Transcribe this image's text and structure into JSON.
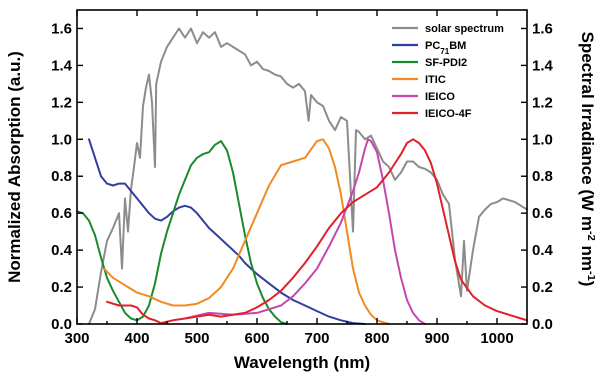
{
  "chart_data": {
    "type": "line",
    "title": "",
    "xlabel": "Wavelength (nm)",
    "ylabel_left": "Normalized Absorption (a.u.)",
    "ylabel_right": {
      "main": "Spectral Irradiance (W m",
      "sup1": "-2",
      "mid": " nm",
      "sup2": "-1",
      "end": ")"
    },
    "xlim": [
      300,
      1050
    ],
    "ylim_left": [
      0,
      1.7
    ],
    "ylim_right": [
      0,
      1.7
    ],
    "x_ticks": [
      300,
      400,
      500,
      600,
      700,
      800,
      900,
      1000
    ],
    "x_tick_labels": [
      "300",
      "400",
      "500",
      "600",
      "700",
      "800",
      "900",
      "1000"
    ],
    "y_ticks": [
      0,
      0.2,
      0.4,
      0.6,
      0.8,
      1.0,
      1.2,
      1.4,
      1.6
    ],
    "y_tick_labels": [
      "0.0",
      "0.2",
      "0.4",
      "0.6",
      "0.8",
      "1.0",
      "1.2",
      "1.4",
      "1.6"
    ],
    "legend_position": "top-right",
    "grid": false,
    "series": [
      {
        "name": "solar spectrum",
        "color": "#8c8c8c",
        "axis": "right",
        "points": [
          [
            320,
            0.0
          ],
          [
            330,
            0.08
          ],
          [
            340,
            0.28
          ],
          [
            350,
            0.45
          ],
          [
            360,
            0.52
          ],
          [
            370,
            0.6
          ],
          [
            375,
            0.3
          ],
          [
            380,
            0.68
          ],
          [
            385,
            0.5
          ],
          [
            390,
            0.73
          ],
          [
            395,
            0.85
          ],
          [
            400,
            0.98
          ],
          [
            405,
            0.9
          ],
          [
            410,
            1.18
          ],
          [
            415,
            1.28
          ],
          [
            420,
            1.35
          ],
          [
            425,
            1.2
          ],
          [
            430,
            0.85
          ],
          [
            432,
            1.3
          ],
          [
            440,
            1.42
          ],
          [
            450,
            1.5
          ],
          [
            460,
            1.55
          ],
          [
            470,
            1.6
          ],
          [
            480,
            1.55
          ],
          [
            490,
            1.6
          ],
          [
            500,
            1.52
          ],
          [
            510,
            1.58
          ],
          [
            520,
            1.55
          ],
          [
            530,
            1.58
          ],
          [
            540,
            1.5
          ],
          [
            550,
            1.52
          ],
          [
            560,
            1.5
          ],
          [
            570,
            1.48
          ],
          [
            580,
            1.46
          ],
          [
            590,
            1.4
          ],
          [
            600,
            1.42
          ],
          [
            610,
            1.38
          ],
          [
            620,
            1.37
          ],
          [
            630,
            1.35
          ],
          [
            640,
            1.34
          ],
          [
            650,
            1.3
          ],
          [
            660,
            1.28
          ],
          [
            670,
            1.3
          ],
          [
            680,
            1.26
          ],
          [
            686,
            1.1
          ],
          [
            690,
            1.24
          ],
          [
            700,
            1.2
          ],
          [
            710,
            1.18
          ],
          [
            720,
            1.1
          ],
          [
            730,
            1.05
          ],
          [
            740,
            1.12
          ],
          [
            750,
            1.1
          ],
          [
            760,
            0.5
          ],
          [
            765,
            1.05
          ],
          [
            770,
            1.04
          ],
          [
            780,
            1.0
          ],
          [
            790,
            1.02
          ],
          [
            800,
            0.95
          ],
          [
            810,
            0.88
          ],
          [
            820,
            0.85
          ],
          [
            830,
            0.78
          ],
          [
            840,
            0.82
          ],
          [
            850,
            0.88
          ],
          [
            860,
            0.88
          ],
          [
            870,
            0.85
          ],
          [
            880,
            0.84
          ],
          [
            890,
            0.82
          ],
          [
            900,
            0.78
          ],
          [
            910,
            0.7
          ],
          [
            920,
            0.65
          ],
          [
            930,
            0.35
          ],
          [
            940,
            0.15
          ],
          [
            945,
            0.45
          ],
          [
            950,
            0.18
          ],
          [
            960,
            0.4
          ],
          [
            970,
            0.58
          ],
          [
            980,
            0.62
          ],
          [
            990,
            0.65
          ],
          [
            1000,
            0.66
          ],
          [
            1010,
            0.68
          ],
          [
            1020,
            0.67
          ],
          [
            1030,
            0.66
          ],
          [
            1040,
            0.64
          ],
          [
            1050,
            0.62
          ]
        ]
      },
      {
        "name": "PC",
        "name_sub": "71",
        "name_suffix": "BM",
        "color": "#2f3fa0",
        "axis": "left",
        "points": [
          [
            320,
            1.0
          ],
          [
            330,
            0.9
          ],
          [
            340,
            0.8
          ],
          [
            350,
            0.76
          ],
          [
            360,
            0.75
          ],
          [
            370,
            0.76
          ],
          [
            380,
            0.76
          ],
          [
            390,
            0.72
          ],
          [
            400,
            0.68
          ],
          [
            410,
            0.64
          ],
          [
            420,
            0.6
          ],
          [
            430,
            0.57
          ],
          [
            440,
            0.56
          ],
          [
            450,
            0.58
          ],
          [
            460,
            0.61
          ],
          [
            470,
            0.63
          ],
          [
            480,
            0.64
          ],
          [
            490,
            0.63
          ],
          [
            500,
            0.6
          ],
          [
            510,
            0.56
          ],
          [
            520,
            0.52
          ],
          [
            530,
            0.49
          ],
          [
            540,
            0.46
          ],
          [
            550,
            0.43
          ],
          [
            560,
            0.4
          ],
          [
            570,
            0.37
          ],
          [
            580,
            0.33
          ],
          [
            590,
            0.3
          ],
          [
            600,
            0.27
          ],
          [
            620,
            0.22
          ],
          [
            640,
            0.17
          ],
          [
            660,
            0.13
          ],
          [
            680,
            0.1
          ],
          [
            700,
            0.07
          ],
          [
            720,
            0.04
          ],
          [
            740,
            0.02
          ],
          [
            760,
            0.005
          ],
          [
            780,
            0.0
          ]
        ]
      },
      {
        "name": "SF-PDI2",
        "color": "#1a8a2e",
        "axis": "left",
        "points": [
          [
            300,
            0.61
          ],
          [
            310,
            0.6
          ],
          [
            320,
            0.56
          ],
          [
            330,
            0.48
          ],
          [
            340,
            0.36
          ],
          [
            350,
            0.25
          ],
          [
            360,
            0.18
          ],
          [
            370,
            0.12
          ],
          [
            380,
            0.06
          ],
          [
            390,
            0.03
          ],
          [
            400,
            0.02
          ],
          [
            410,
            0.04
          ],
          [
            420,
            0.1
          ],
          [
            430,
            0.22
          ],
          [
            440,
            0.38
          ],
          [
            450,
            0.5
          ],
          [
            460,
            0.6
          ],
          [
            470,
            0.7
          ],
          [
            480,
            0.78
          ],
          [
            490,
            0.86
          ],
          [
            500,
            0.9
          ],
          [
            510,
            0.92
          ],
          [
            520,
            0.93
          ],
          [
            530,
            0.97
          ],
          [
            540,
            0.99
          ],
          [
            550,
            0.94
          ],
          [
            560,
            0.82
          ],
          [
            570,
            0.65
          ],
          [
            580,
            0.48
          ],
          [
            590,
            0.33
          ],
          [
            600,
            0.22
          ],
          [
            610,
            0.14
          ],
          [
            620,
            0.08
          ],
          [
            630,
            0.04
          ],
          [
            640,
            0.01
          ],
          [
            650,
            0.0
          ]
        ]
      },
      {
        "name": "ITIC",
        "color": "#f08a22",
        "axis": "left",
        "points": [
          [
            345,
            0.3
          ],
          [
            360,
            0.25
          ],
          [
            380,
            0.21
          ],
          [
            400,
            0.17
          ],
          [
            420,
            0.15
          ],
          [
            440,
            0.12
          ],
          [
            460,
            0.1
          ],
          [
            480,
            0.1
          ],
          [
            500,
            0.11
          ],
          [
            520,
            0.14
          ],
          [
            540,
            0.2
          ],
          [
            560,
            0.3
          ],
          [
            580,
            0.45
          ],
          [
            600,
            0.6
          ],
          [
            620,
            0.75
          ],
          [
            640,
            0.86
          ],
          [
            660,
            0.88
          ],
          [
            680,
            0.9
          ],
          [
            700,
            0.99
          ],
          [
            710,
            1.0
          ],
          [
            720,
            0.95
          ],
          [
            730,
            0.85
          ],
          [
            740,
            0.7
          ],
          [
            750,
            0.5
          ],
          [
            760,
            0.3
          ],
          [
            770,
            0.17
          ],
          [
            780,
            0.1
          ],
          [
            790,
            0.05
          ],
          [
            800,
            0.02
          ],
          [
            810,
            0.01
          ],
          [
            820,
            0.0
          ]
        ]
      },
      {
        "name": "IEICO",
        "color": "#c447b0",
        "axis": "left",
        "points": [
          [
            480,
            0.03
          ],
          [
            520,
            0.06
          ],
          [
            560,
            0.05
          ],
          [
            600,
            0.06
          ],
          [
            640,
            0.1
          ],
          [
            660,
            0.15
          ],
          [
            680,
            0.22
          ],
          [
            700,
            0.3
          ],
          [
            720,
            0.42
          ],
          [
            740,
            0.55
          ],
          [
            760,
            0.72
          ],
          [
            770,
            0.82
          ],
          [
            780,
            0.95
          ],
          [
            785,
            1.0
          ],
          [
            790,
            0.99
          ],
          [
            800,
            0.93
          ],
          [
            810,
            0.78
          ],
          [
            820,
            0.6
          ],
          [
            830,
            0.4
          ],
          [
            840,
            0.25
          ],
          [
            850,
            0.13
          ],
          [
            860,
            0.06
          ],
          [
            870,
            0.02
          ],
          [
            880,
            0.0
          ]
        ]
      },
      {
        "name": "IEICO-4F",
        "color": "#e0202a",
        "axis": "left",
        "points": [
          [
            350,
            0.12
          ],
          [
            370,
            0.1
          ],
          [
            390,
            0.1
          ],
          [
            400,
            0.09
          ],
          [
            410,
            0.05
          ],
          [
            420,
            0.03
          ],
          [
            430,
            0.02
          ],
          [
            440,
            0.005
          ],
          [
            460,
            0.02
          ],
          [
            480,
            0.03
          ],
          [
            500,
            0.04
          ],
          [
            520,
            0.05
          ],
          [
            540,
            0.04
          ],
          [
            560,
            0.05
          ],
          [
            580,
            0.06
          ],
          [
            600,
            0.09
          ],
          [
            620,
            0.13
          ],
          [
            640,
            0.18
          ],
          [
            660,
            0.25
          ],
          [
            680,
            0.33
          ],
          [
            700,
            0.42
          ],
          [
            720,
            0.52
          ],
          [
            740,
            0.6
          ],
          [
            760,
            0.66
          ],
          [
            780,
            0.7
          ],
          [
            800,
            0.74
          ],
          [
            820,
            0.82
          ],
          [
            840,
            0.92
          ],
          [
            850,
            0.98
          ],
          [
            860,
            1.0
          ],
          [
            870,
            0.98
          ],
          [
            880,
            0.94
          ],
          [
            890,
            0.87
          ],
          [
            900,
            0.76
          ],
          [
            910,
            0.62
          ],
          [
            920,
            0.48
          ],
          [
            930,
            0.34
          ],
          [
            940,
            0.24
          ],
          [
            960,
            0.15
          ],
          [
            980,
            0.1
          ],
          [
            1000,
            0.07
          ],
          [
            1020,
            0.05
          ],
          [
            1040,
            0.03
          ],
          [
            1050,
            0.02
          ]
        ]
      }
    ]
  }
}
